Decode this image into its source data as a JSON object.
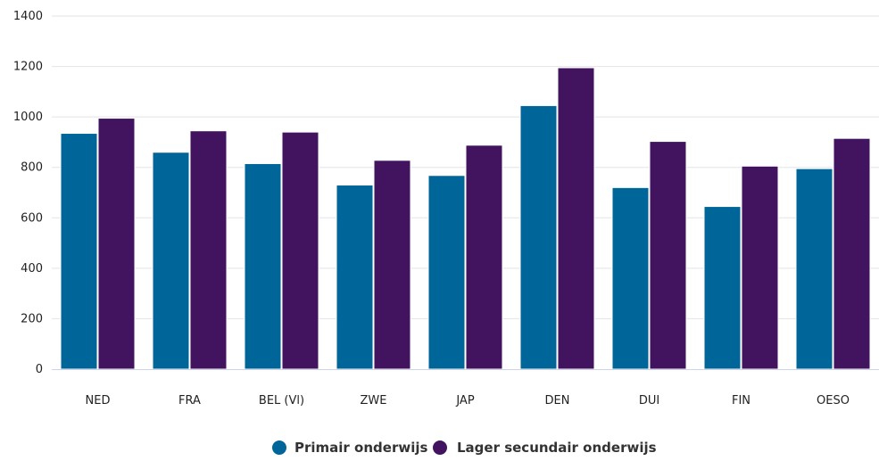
{
  "chart_data": {
    "type": "bar",
    "title": "",
    "xlabel": "",
    "ylabel": "",
    "categories": [
      "NED",
      "FRA",
      "BEL (Vl)",
      "ZWE",
      "JAP",
      "DEN",
      "DUI",
      "FIN",
      "OESO"
    ],
    "series": [
      {
        "name": "Primair onderwijs",
        "color": "#006699",
        "values": [
          935,
          860,
          815,
          730,
          768,
          1045,
          720,
          645,
          795
        ]
      },
      {
        "name": "Lager secundair onderwijs",
        "color": "#42145f",
        "values": [
          995,
          945,
          940,
          828,
          888,
          1195,
          903,
          805,
          915
        ]
      }
    ],
    "ylim": [
      0,
      1400
    ],
    "yticks": [
      0,
      200,
      400,
      600,
      800,
      1000,
      1200,
      1400
    ],
    "grid": true,
    "legend_position": "bottom-center"
  }
}
